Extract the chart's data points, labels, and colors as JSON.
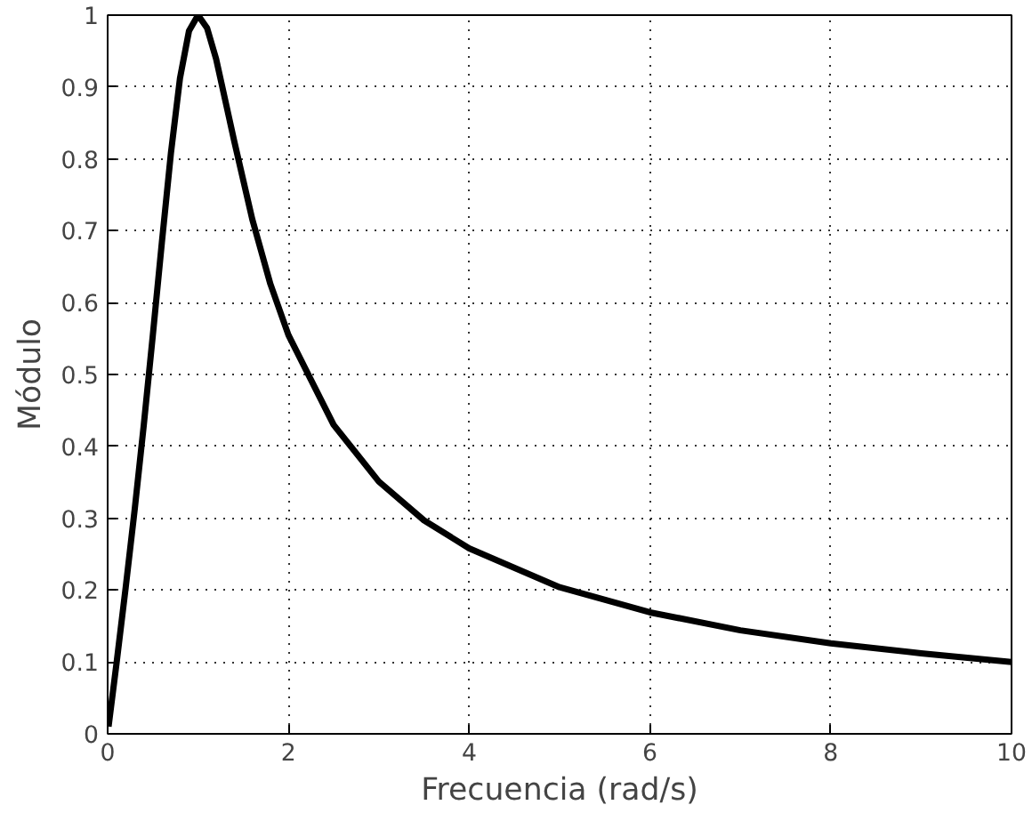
{
  "chart_data": {
    "type": "line",
    "xlabel": "Frecuencia (rad/s)",
    "ylabel": "Módulo",
    "x": [
      0.01,
      0.1,
      0.2,
      0.3,
      0.4,
      0.5,
      0.6,
      0.7,
      0.8,
      0.9,
      1.0,
      1.1,
      1.2,
      1.4,
      1.6,
      1.8,
      2,
      2.5,
      3,
      3.5,
      4,
      5,
      6,
      7,
      8,
      9,
      10
    ],
    "series": [
      {
        "color": "#000000",
        "values": [
          0.01,
          0.1,
          0.204,
          0.313,
          0.43,
          0.555,
          0.684,
          0.808,
          0.912,
          0.978,
          1.0,
          0.982,
          0.939,
          0.825,
          0.716,
          0.626,
          0.555,
          0.43,
          0.351,
          0.297,
          0.258,
          0.204,
          0.169,
          0.144,
          0.126,
          0.112,
          0.1
        ]
      }
    ],
    "xlim": [
      0,
      10
    ],
    "ylim": [
      0,
      1
    ],
    "xticks": [
      0,
      2,
      4,
      6,
      8,
      10
    ],
    "yticks": [
      0,
      0.1,
      0.2,
      0.3,
      0.4,
      0.5,
      0.6,
      0.7,
      0.8,
      0.9,
      1
    ],
    "grid": true,
    "line_style": "solid",
    "marker": "none"
  }
}
